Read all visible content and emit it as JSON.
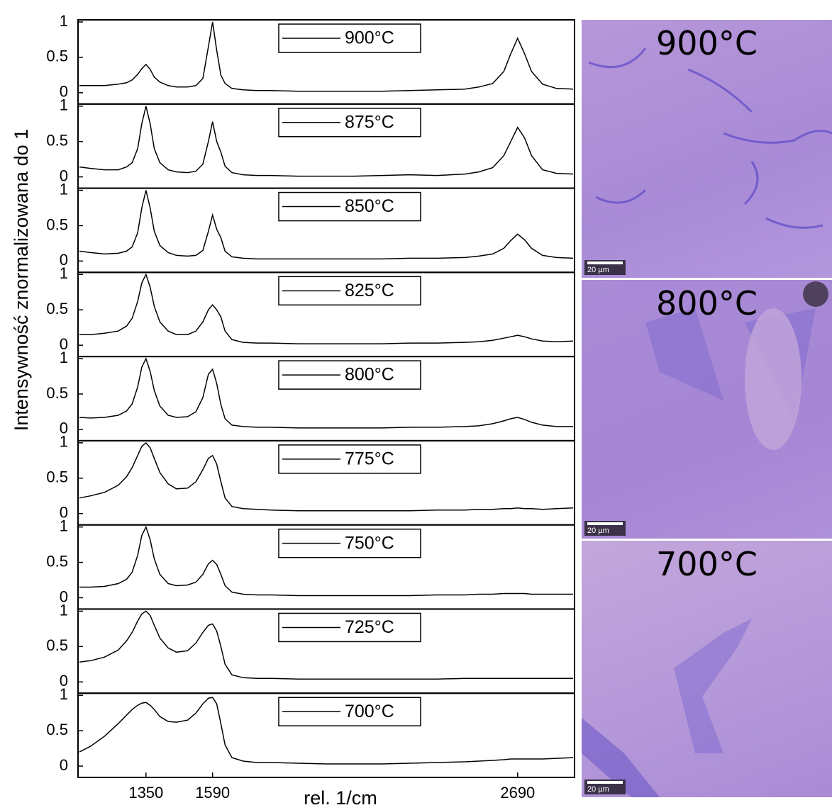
{
  "chart_data": {
    "type": "line",
    "y_label": "Intensywność znormalizowana do 1",
    "x_label": "rel. 1/cm",
    "xlim": [
      1105,
      2895
    ],
    "xticks": [
      1350,
      1590,
      2690
    ],
    "ylim": [
      -0.16,
      1.03
    ],
    "yticks": [
      0,
      0.5,
      1
    ],
    "x": [
      1110,
      1150,
      1200,
      1250,
      1280,
      1300,
      1320,
      1335,
      1350,
      1365,
      1380,
      1400,
      1430,
      1460,
      1500,
      1530,
      1555,
      1575,
      1590,
      1605,
      1620,
      1635,
      1660,
      1700,
      1750,
      1800,
      1900,
      2000,
      2100,
      2200,
      2300,
      2400,
      2500,
      2550,
      2600,
      2640,
      2665,
      2690,
      2715,
      2740,
      2780,
      2830,
      2890
    ],
    "series": [
      {
        "name": "900°C",
        "color": "#000000",
        "values": [
          0.1,
          0.1,
          0.1,
          0.12,
          0.14,
          0.18,
          0.26,
          0.34,
          0.4,
          0.33,
          0.22,
          0.15,
          0.1,
          0.08,
          0.08,
          0.1,
          0.2,
          0.65,
          1.0,
          0.6,
          0.25,
          0.13,
          0.06,
          0.04,
          0.03,
          0.03,
          0.02,
          0.02,
          0.02,
          0.02,
          0.03,
          0.04,
          0.05,
          0.08,
          0.13,
          0.3,
          0.55,
          0.77,
          0.55,
          0.3,
          0.12,
          0.06,
          0.05
        ]
      },
      {
        "name": "875°C",
        "color": "#000000",
        "values": [
          0.14,
          0.12,
          0.1,
          0.1,
          0.14,
          0.2,
          0.4,
          0.75,
          1.0,
          0.75,
          0.4,
          0.2,
          0.1,
          0.07,
          0.06,
          0.08,
          0.18,
          0.5,
          0.78,
          0.5,
          0.35,
          0.15,
          0.06,
          0.03,
          0.02,
          0.02,
          0.01,
          0.01,
          0.01,
          0.02,
          0.03,
          0.02,
          0.04,
          0.07,
          0.13,
          0.3,
          0.5,
          0.7,
          0.55,
          0.3,
          0.1,
          0.05,
          0.04
        ]
      },
      {
        "name": "850°C",
        "color": "#000000",
        "values": [
          0.14,
          0.12,
          0.1,
          0.11,
          0.14,
          0.2,
          0.4,
          0.75,
          1.0,
          0.75,
          0.42,
          0.22,
          0.12,
          0.08,
          0.07,
          0.08,
          0.15,
          0.42,
          0.65,
          0.45,
          0.33,
          0.14,
          0.06,
          0.04,
          0.03,
          0.03,
          0.03,
          0.03,
          0.03,
          0.03,
          0.04,
          0.04,
          0.05,
          0.07,
          0.1,
          0.18,
          0.29,
          0.38,
          0.3,
          0.18,
          0.08,
          0.05,
          0.04
        ]
      },
      {
        "name": "825°C",
        "color": "#000000",
        "values": [
          0.15,
          0.15,
          0.17,
          0.2,
          0.27,
          0.38,
          0.62,
          0.88,
          1.0,
          0.82,
          0.55,
          0.33,
          0.2,
          0.15,
          0.15,
          0.2,
          0.33,
          0.5,
          0.57,
          0.5,
          0.4,
          0.2,
          0.08,
          0.04,
          0.03,
          0.03,
          0.02,
          0.02,
          0.02,
          0.02,
          0.03,
          0.03,
          0.04,
          0.05,
          0.07,
          0.1,
          0.12,
          0.14,
          0.12,
          0.09,
          0.06,
          0.05,
          0.06
        ]
      },
      {
        "name": "800°C",
        "color": "#000000",
        "values": [
          0.17,
          0.16,
          0.17,
          0.2,
          0.26,
          0.36,
          0.6,
          0.88,
          1.0,
          0.82,
          0.55,
          0.33,
          0.2,
          0.17,
          0.18,
          0.25,
          0.45,
          0.78,
          0.85,
          0.65,
          0.35,
          0.15,
          0.06,
          0.04,
          0.03,
          0.03,
          0.02,
          0.02,
          0.02,
          0.02,
          0.03,
          0.03,
          0.04,
          0.05,
          0.08,
          0.12,
          0.15,
          0.17,
          0.14,
          0.1,
          0.06,
          0.04,
          0.04
        ]
      },
      {
        "name": "775°C",
        "color": "#000000",
        "values": [
          0.22,
          0.25,
          0.3,
          0.4,
          0.52,
          0.65,
          0.82,
          0.95,
          1.0,
          0.93,
          0.78,
          0.58,
          0.42,
          0.35,
          0.36,
          0.45,
          0.62,
          0.78,
          0.82,
          0.7,
          0.45,
          0.22,
          0.1,
          0.07,
          0.06,
          0.05,
          0.04,
          0.04,
          0.04,
          0.04,
          0.04,
          0.05,
          0.05,
          0.06,
          0.06,
          0.07,
          0.07,
          0.08,
          0.07,
          0.07,
          0.06,
          0.07,
          0.08
        ]
      },
      {
        "name": "750°C",
        "color": "#000000",
        "values": [
          0.15,
          0.15,
          0.16,
          0.2,
          0.26,
          0.36,
          0.6,
          0.88,
          1.0,
          0.82,
          0.55,
          0.33,
          0.2,
          0.17,
          0.18,
          0.22,
          0.33,
          0.48,
          0.53,
          0.47,
          0.33,
          0.17,
          0.08,
          0.05,
          0.04,
          0.04,
          0.03,
          0.03,
          0.03,
          0.03,
          0.03,
          0.04,
          0.04,
          0.05,
          0.05,
          0.06,
          0.06,
          0.06,
          0.06,
          0.05,
          0.05,
          0.05,
          0.05
        ]
      },
      {
        "name": "725°C",
        "color": "#000000",
        "values": [
          0.28,
          0.3,
          0.35,
          0.45,
          0.58,
          0.7,
          0.86,
          0.96,
          1.0,
          0.94,
          0.8,
          0.62,
          0.48,
          0.42,
          0.44,
          0.55,
          0.7,
          0.8,
          0.82,
          0.72,
          0.5,
          0.25,
          0.1,
          0.06,
          0.05,
          0.05,
          0.04,
          0.04,
          0.04,
          0.04,
          0.04,
          0.04,
          0.05,
          0.05,
          0.05,
          0.05,
          0.05,
          0.05,
          0.05,
          0.05,
          0.05,
          0.05,
          0.05
        ]
      },
      {
        "name": "700°C",
        "color": "#000000",
        "values": [
          0.2,
          0.28,
          0.42,
          0.6,
          0.72,
          0.8,
          0.86,
          0.89,
          0.9,
          0.86,
          0.8,
          0.7,
          0.63,
          0.62,
          0.65,
          0.75,
          0.88,
          0.96,
          0.97,
          0.88,
          0.6,
          0.3,
          0.12,
          0.07,
          0.05,
          0.05,
          0.04,
          0.03,
          0.03,
          0.03,
          0.04,
          0.05,
          0.06,
          0.07,
          0.08,
          0.09,
          0.1,
          0.1,
          0.1,
          0.1,
          0.1,
          0.11,
          0.12
        ]
      }
    ]
  },
  "micrographs": [
    {
      "label": "900°C",
      "scale_bar": "20 µm"
    },
    {
      "label": "800°C",
      "scale_bar": "20 µm"
    },
    {
      "label": "700°C",
      "scale_bar": "20 µm"
    }
  ]
}
